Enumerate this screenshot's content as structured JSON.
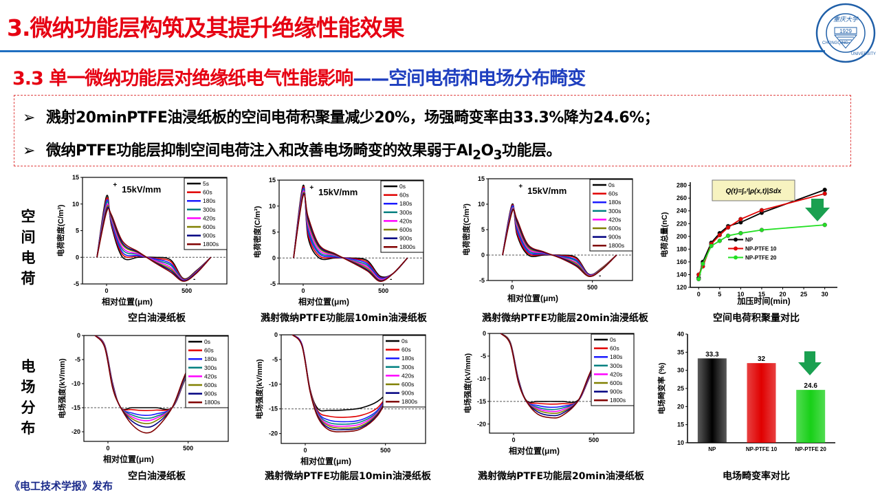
{
  "slide": {
    "title": "3.微纳功能层构筑及其提升绝缘性能效果",
    "subtitle_red": "3.3 单一微纳功能层对绝缘纸电气性能影响",
    "subtitle_blue": "——空间电荷和电场分布畸变",
    "bullets": [
      {
        "icon": "arrow-bullet-icon",
        "text": "溅射20minPTFE油浸纸板的空间电荷积聚量减少20%，场强畸变率由33.3%降为24.6%；"
      },
      {
        "icon": "arrow-bullet-icon",
        "text_a": "微纳PTFE功能层抑制空间电荷注入和改善电场畸变的效果弱于Al",
        "sub1": "2",
        "text_b": "O",
        "sub2": "3",
        "text_c": "功能层。"
      }
    ],
    "row_labels": [
      "空间电荷",
      "电场分布"
    ],
    "logo_text": "重庆大学 1929 CHONGQING UNIVERSITY",
    "footer": "《电工技术学报》发布",
    "bullet_symbol": "➢"
  },
  "colors": {
    "title": "#e60012",
    "subtitle_blue": "#1f3fbf",
    "rule": "#1f6fc0",
    "arrow": "#1aa050"
  },
  "chart_data": [
    {
      "type": "line",
      "caption": "空白油浸纸板",
      "annotation": "15kV/mm",
      "xlabel": "相对位置(μm)",
      "ylabel": "电荷密度(C/m³)",
      "xlim": [
        -150,
        750
      ],
      "ylim": [
        -5,
        15
      ],
      "xticks": [
        0,
        500
      ],
      "yticks": [
        -5,
        0,
        5,
        10,
        15
      ],
      "refline": 0,
      "marks": [
        "+",
        "-"
      ],
      "x": [
        -60,
        0,
        30,
        100,
        200,
        300,
        400,
        480,
        560,
        650
      ],
      "series": [
        {
          "name": "5s",
          "color": "#000000",
          "values": [
            0,
            11.5,
            6,
            0,
            0,
            0,
            -0.5,
            -4,
            -2.5,
            0
          ]
        },
        {
          "name": "60s",
          "color": "#e00000",
          "values": [
            0,
            11.0,
            6.3,
            0.5,
            0.2,
            -0.2,
            -0.8,
            -4.1,
            -2.6,
            0
          ]
        },
        {
          "name": "180s",
          "color": "#1a1aff",
          "values": [
            0,
            10.6,
            6.6,
            0.9,
            0.3,
            -0.3,
            -1.2,
            -4.2,
            -2.7,
            0
          ]
        },
        {
          "name": "300s",
          "color": "#008080",
          "values": [
            0,
            10.2,
            6.9,
            1.4,
            0.5,
            -0.5,
            -1.5,
            -4.2,
            -2.7,
            0
          ]
        },
        {
          "name": "420s",
          "color": "#ff00ff",
          "values": [
            0,
            9.7,
            7.2,
            1.8,
            0.6,
            -0.6,
            -1.9,
            -4.3,
            -2.8,
            0
          ]
        },
        {
          "name": "600s",
          "color": "#808000",
          "values": [
            0,
            9.3,
            7.5,
            2.3,
            0.8,
            -0.8,
            -2.2,
            -4.4,
            -2.9,
            0
          ]
        },
        {
          "name": "900s",
          "color": "#000080",
          "values": [
            0,
            8.9,
            7.8,
            2.6,
            0.9,
            -0.9,
            -2.5,
            -4.4,
            -2.9,
            0
          ]
        },
        {
          "name": "1800s",
          "color": "#800000",
          "values": [
            0,
            8.5,
            8,
            3,
            1,
            -1,
            -2.8,
            -4.5,
            -3,
            0
          ]
        }
      ]
    },
    {
      "type": "line",
      "caption": "溅射微纳PTFE功能层10min油浸纸板",
      "annotation": "15kV/mm",
      "xlabel": "相对位置(μm)",
      "ylabel": "电荷密度(C/m³)",
      "xlim": [
        -150,
        750
      ],
      "ylim": [
        -5,
        15
      ],
      "xticks": [
        0,
        500
      ],
      "yticks": [
        -5,
        0,
        5,
        10,
        15
      ],
      "refline": 0,
      "marks": [
        "+",
        "-"
      ],
      "x": [
        -60,
        0,
        30,
        100,
        200,
        300,
        400,
        480,
        560,
        650
      ],
      "series": [
        {
          "name": "0s",
          "color": "#000000",
          "values": [
            0,
            14,
            4,
            0,
            0,
            0,
            -0.5,
            -3.5,
            -3,
            0
          ]
        },
        {
          "name": "60s",
          "color": "#e00000",
          "values": [
            0,
            13.7,
            4.6,
            0.4,
            0.1,
            -0.1,
            -0.8,
            -3.7,
            -3,
            0
          ]
        },
        {
          "name": "180s",
          "color": "#1a1aff",
          "values": [
            0,
            13.4,
            5.2,
            0.8,
            0.2,
            -0.2,
            -1.1,
            -3.8,
            -3,
            0
          ]
        },
        {
          "name": "300s",
          "color": "#008080",
          "values": [
            0,
            13.1,
            5.8,
            1.1,
            0.4,
            -0.4,
            -1.4,
            -4,
            -3,
            0
          ]
        },
        {
          "name": "420s",
          "color": "#ff00ff",
          "values": [
            0,
            12.8,
            6.4,
            1.5,
            0.5,
            -0.5,
            -1.7,
            -4.1,
            -3,
            0
          ]
        },
        {
          "name": "600s",
          "color": "#808000",
          "values": [
            0,
            12.5,
            7,
            1.9,
            0.6,
            -0.6,
            -2,
            -4.3,
            -3,
            0
          ]
        },
        {
          "name": "900s",
          "color": "#000080",
          "values": [
            0,
            12.2,
            7.5,
            2.2,
            0.7,
            -0.7,
            -2.3,
            -4.4,
            -3,
            0
          ]
        },
        {
          "name": "1800s",
          "color": "#800000",
          "values": [
            0,
            12,
            8,
            2.5,
            0.8,
            -0.8,
            -2.5,
            -4.5,
            -3,
            0
          ]
        }
      ]
    },
    {
      "type": "line",
      "caption": "溅射微纳PTFE功能层20min油浸纸板",
      "annotation": "15kV/mm",
      "xlabel": "相对位置(μm)",
      "ylabel": "电荷密度(C/m³)",
      "xlim": [
        -150,
        750
      ],
      "ylim": [
        -5,
        15
      ],
      "xticks": [
        0,
        500
      ],
      "yticks": [
        -5,
        0,
        5,
        10,
        15
      ],
      "refline": 0,
      "marks": [
        "+",
        "-"
      ],
      "x": [
        -60,
        0,
        30,
        100,
        200,
        300,
        400,
        480,
        560,
        650
      ],
      "series": [
        {
          "name": "0s",
          "color": "#000000",
          "values": [
            0,
            10,
            4,
            0,
            0,
            0,
            -0.5,
            -3.8,
            -2.5,
            0
          ]
        },
        {
          "name": "60s",
          "color": "#e00000",
          "values": [
            0,
            9.8,
            4.4,
            0.3,
            0.1,
            -0.1,
            -0.7,
            -3.9,
            -2.5,
            0
          ]
        },
        {
          "name": "180s",
          "color": "#1a1aff",
          "values": [
            0,
            9.6,
            4.9,
            0.6,
            0.2,
            -0.2,
            -1,
            -3.9,
            -2.6,
            0
          ]
        },
        {
          "name": "300s",
          "color": "#008080",
          "values": [
            0,
            9.3,
            5.4,
            0.9,
            0.3,
            -0.3,
            -1.2,
            -4,
            -2.6,
            0
          ]
        },
        {
          "name": "420s",
          "color": "#ff00ff",
          "values": [
            0,
            9.1,
            5.8,
            1.2,
            0.4,
            -0.4,
            -1.5,
            -4,
            -2.7,
            0
          ]
        },
        {
          "name": "600s",
          "color": "#808000",
          "values": [
            0,
            8.9,
            6.2,
            1.5,
            0.5,
            -0.5,
            -1.7,
            -4.1,
            -2.7,
            0
          ]
        },
        {
          "name": "900s",
          "color": "#000080",
          "values": [
            0,
            8.7,
            6.6,
            1.8,
            0.5,
            -0.5,
            -2,
            -4.2,
            -2.8,
            0
          ]
        },
        {
          "name": "1800s",
          "color": "#800000",
          "values": [
            0,
            8.5,
            7,
            2,
            0.6,
            -0.6,
            -2.2,
            -4.2,
            -2.8,
            0
          ]
        }
      ]
    },
    {
      "type": "line",
      "caption": "空白油浸纸板",
      "xlabel": "相对位置(μm)",
      "ylabel": "电场强度(kV/mm)",
      "xlim": [
        -150,
        750
      ],
      "ylim": [
        -22,
        0
      ],
      "xticks": [
        0,
        500
      ],
      "yticks": [
        -20,
        -15,
        -10,
        -5,
        0
      ],
      "refline": -15,
      "x": [
        -80,
        -20,
        30,
        80,
        150,
        230,
        300,
        400,
        470,
        540
      ],
      "series": [
        {
          "name": "0s",
          "color": "#000000",
          "values": [
            0,
            -2,
            -10,
            -15,
            -15,
            -15,
            -15,
            -15,
            -10,
            -4
          ]
        },
        {
          "name": "60s",
          "color": "#e00000",
          "values": [
            0,
            -2,
            -10.1,
            -15,
            -15.4,
            -15.6,
            -15.5,
            -15,
            -9.9,
            -3.9
          ]
        },
        {
          "name": "180s",
          "color": "#1a1aff",
          "values": [
            0,
            -2.1,
            -10.2,
            -15,
            -16.1,
            -16.6,
            -16.3,
            -15,
            -9.8,
            -3.9
          ]
        },
        {
          "name": "300s",
          "color": "#008080",
          "values": [
            0,
            -2.1,
            -10.4,
            -15,
            -16.5,
            -17.2,
            -16.8,
            -15,
            -9.7,
            -3.8
          ]
        },
        {
          "name": "420s",
          "color": "#ff00ff",
          "values": [
            0,
            -2.2,
            -10.5,
            -15,
            -16.9,
            -17.7,
            -17.2,
            -15,
            -9.5,
            -3.8
          ]
        },
        {
          "name": "600s",
          "color": "#808000",
          "values": [
            0,
            -2.3,
            -10.6,
            -15,
            -17.3,
            -18.3,
            -17.7,
            -15,
            -9.4,
            -3.7
          ]
        },
        {
          "name": "900s",
          "color": "#000080",
          "values": [
            0,
            -2.4,
            -10.8,
            -15,
            -17.8,
            -19,
            -18.4,
            -15,
            -9.2,
            -3.6
          ]
        },
        {
          "name": "1800s",
          "color": "#800000",
          "values": [
            0,
            -2.5,
            -11,
            -15,
            -18.5,
            -20.2,
            -19.3,
            -15,
            -9,
            -3.5
          ]
        }
      ]
    },
    {
      "type": "line",
      "caption": "溅射微纳PTFE功能层10min油浸纸板",
      "xlabel": "相对位置(μm)",
      "ylabel": "电场强度(kV/mm)",
      "xlim": [
        -150,
        750
      ],
      "ylim": [
        -22,
        0
      ],
      "xticks": [
        0,
        500
      ],
      "yticks": [
        -20,
        -15,
        -10,
        -5,
        0
      ],
      "refline": -15,
      "x": [
        -80,
        -20,
        30,
        80,
        150,
        250,
        350,
        450,
        530,
        620
      ],
      "series": [
        {
          "name": "0s",
          "color": "#000000",
          "values": [
            0,
            -2,
            -11,
            -15,
            -15.3,
            -15.2,
            -14.8,
            -13.5,
            -11,
            -7
          ]
        },
        {
          "name": "60s",
          "color": "#e00000",
          "values": [
            0,
            -2,
            -11,
            -15.5,
            -16.5,
            -16.7,
            -16.3,
            -14.8,
            -11.3,
            -7
          ]
        },
        {
          "name": "180s",
          "color": "#1a1aff",
          "values": [
            0,
            -2,
            -11.2,
            -15.8,
            -17.3,
            -17.6,
            -17.2,
            -15.3,
            -11.4,
            -7
          ]
        },
        {
          "name": "300s",
          "color": "#008080",
          "values": [
            0,
            -2.1,
            -11.2,
            -16,
            -17.8,
            -18.1,
            -17.6,
            -15.6,
            -11.5,
            -7
          ]
        },
        {
          "name": "420s",
          "color": "#ff00ff",
          "values": [
            0,
            -2.1,
            -11.3,
            -16.2,
            -18.2,
            -18.5,
            -18,
            -15.8,
            -11.5,
            -7
          ]
        },
        {
          "name": "600s",
          "color": "#808000",
          "values": [
            0,
            -2.2,
            -11.3,
            -16.4,
            -18.5,
            -18.9,
            -18.4,
            -16,
            -11.6,
            -7
          ]
        },
        {
          "name": "900s",
          "color": "#000080",
          "values": [
            0,
            -2.2,
            -11.4,
            -16.6,
            -18.9,
            -19.2,
            -18.7,
            -16.2,
            -11.7,
            -7
          ]
        },
        {
          "name": "1800s",
          "color": "#800000",
          "values": [
            0,
            -2.3,
            -11.5,
            -16.8,
            -19.3,
            -19.6,
            -19,
            -16.4,
            -11.8,
            -7
          ]
        }
      ]
    },
    {
      "type": "line",
      "caption": "溅射微纳PTFE功能层20min油浸纸板",
      "xlabel": "相对位置(μm)",
      "ylabel": "电场强度(kV/mm)",
      "xlim": [
        -150,
        750
      ],
      "ylim": [
        -22,
        0
      ],
      "xticks": [
        0,
        500
      ],
      "yticks": [
        -20,
        -15,
        -10,
        -5,
        0
      ],
      "refline": -15,
      "x": [
        -80,
        -20,
        30,
        80,
        150,
        230,
        300,
        400,
        470,
        540
      ],
      "series": [
        {
          "name": "0s",
          "color": "#000000",
          "values": [
            0,
            -2,
            -10,
            -14.8,
            -15,
            -15,
            -15,
            -14.8,
            -10,
            -4
          ]
        },
        {
          "name": "60s",
          "color": "#e00000",
          "values": [
            0,
            -2,
            -10.1,
            -14.9,
            -15.4,
            -15.6,
            -15.5,
            -15,
            -9.9,
            -4
          ]
        },
        {
          "name": "180s",
          "color": "#1a1aff",
          "values": [
            0,
            -2.1,
            -10.2,
            -15,
            -15.9,
            -16.3,
            -16.1,
            -15,
            -9.8,
            -3.9
          ]
        },
        {
          "name": "300s",
          "color": "#008080",
          "values": [
            0,
            -2.1,
            -10.3,
            -15,
            -16.3,
            -16.8,
            -16.5,
            -15,
            -9.7,
            -3.9
          ]
        },
        {
          "name": "420s",
          "color": "#ff00ff",
          "values": [
            0,
            -2.2,
            -10.4,
            -15,
            -16.6,
            -17.2,
            -16.9,
            -15,
            -9.6,
            -3.8
          ]
        },
        {
          "name": "600s",
          "color": "#808000",
          "values": [
            0,
            -2.2,
            -10.5,
            -15,
            -16.9,
            -17.6,
            -17.3,
            -15,
            -9.5,
            -3.8
          ]
        },
        {
          "name": "900s",
          "color": "#000080",
          "values": [
            0,
            -2.3,
            -10.6,
            -15,
            -17.3,
            -18.1,
            -17.7,
            -15,
            -9.4,
            -3.7
          ]
        },
        {
          "name": "1800s",
          "color": "#800000",
          "values": [
            0,
            -2.4,
            -10.8,
            -15,
            -17.8,
            -18.6,
            -18.2,
            -15,
            -9.2,
            -3.6
          ]
        }
      ]
    },
    {
      "type": "line",
      "caption": "空间电荷积聚量对比",
      "formula": "Q(t)=∫₀ᵗ|ρ(x,t)|Sdx",
      "xlabel": "加压时间(min)",
      "ylabel": "电荷总量(nC)",
      "xlim": [
        -2,
        33
      ],
      "ylim": [
        120,
        285
      ],
      "xticks": [
        0,
        5,
        10,
        15,
        20,
        25,
        30
      ],
      "yticks": [
        120,
        140,
        160,
        180,
        200,
        220,
        240,
        260,
        280
      ],
      "legend": "center-right",
      "markers": true,
      "x": [
        0,
        1,
        3,
        5,
        7,
        10,
        15,
        30
      ],
      "series": [
        {
          "name": "NP",
          "color": "#000000",
          "values": [
            135,
            160,
            190,
            205,
            216,
            222,
            237,
            273
          ]
        },
        {
          "name": "NP-PTFE 10",
          "color": "#e00000",
          "values": [
            140,
            153,
            188,
            202,
            214,
            227,
            241,
            267
          ]
        },
        {
          "name": "NP-PTFE 20",
          "color": "#22e022",
          "values": [
            133,
            157,
            185,
            193,
            201,
            205,
            210,
            218
          ]
        }
      ]
    },
    {
      "type": "bar",
      "caption": "电场畸变率对比",
      "ylabel": "电场畸变率 (%)",
      "ylim": [
        10,
        40
      ],
      "yticks": [
        10,
        15,
        20,
        25,
        30,
        35,
        40
      ],
      "categories": [
        "NP",
        "NP-PTFE 10",
        "NP-PTFE 20"
      ],
      "values": [
        33.3,
        32,
        24.6
      ],
      "data_labels": [
        "33.3",
        "32",
        "24.6"
      ],
      "colors": [
        "#222222",
        "#e00000",
        "#18d018"
      ]
    }
  ]
}
